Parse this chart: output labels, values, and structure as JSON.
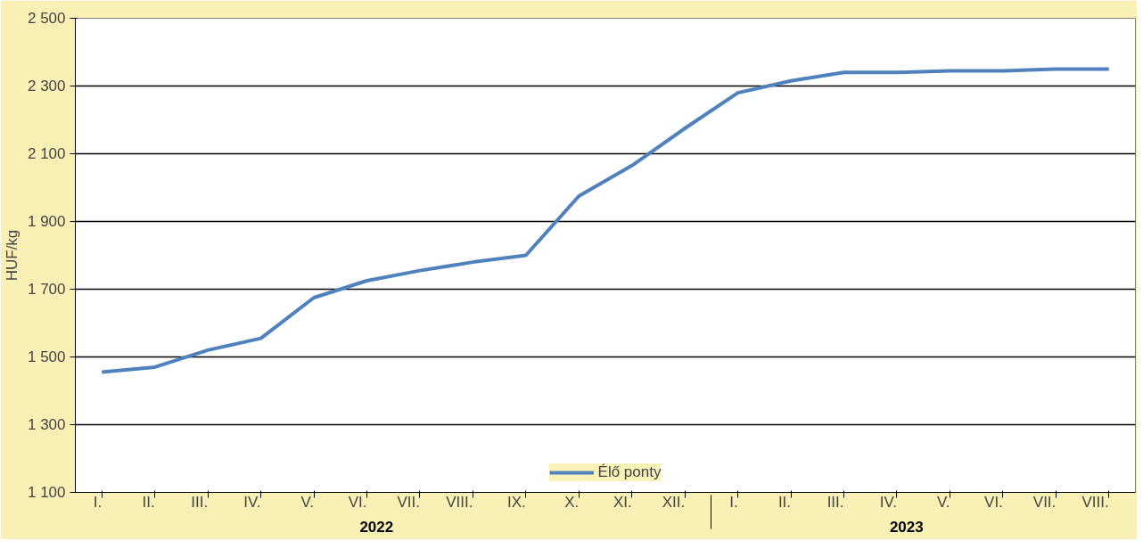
{
  "chart_data": {
    "type": "line",
    "ylabel": "HUF/kg",
    "categories": [
      "I.",
      "II.",
      "III.",
      "IV.",
      "V.",
      "VI.",
      "VII.",
      "VIII.",
      "IX.",
      "X.",
      "XI.",
      "XII.",
      "I.",
      "II.",
      "III.",
      "IV.",
      "V.",
      "VI.",
      "VII.",
      "VIII."
    ],
    "annotations": [
      "2022",
      "2023"
    ],
    "series": [
      {
        "name": "Élő ponty",
        "color": "#4f81bd",
        "values": [
          1455,
          1470,
          1520,
          1555,
          1675,
          1725,
          1755,
          1780,
          1800,
          1975,
          2065,
          2175,
          2280,
          2315,
          2340,
          2340,
          2345,
          2345,
          2350,
          2350
        ]
      }
    ],
    "ylim": [
      1100,
      2500
    ],
    "yticks": [
      {
        "value": 1100,
        "label": "1 100"
      },
      {
        "value": 1300,
        "label": "1 300"
      },
      {
        "value": 1500,
        "label": "1 500"
      },
      {
        "value": 1700,
        "label": "1 700"
      },
      {
        "value": 1900,
        "label": "1 900"
      },
      {
        "value": 2100,
        "label": "2 100"
      },
      {
        "value": 2300,
        "label": "2 300"
      },
      {
        "value": 2500,
        "label": "2 500"
      }
    ],
    "grid": "y",
    "legend": "bottom",
    "marker": "none",
    "line_style": "solid"
  }
}
